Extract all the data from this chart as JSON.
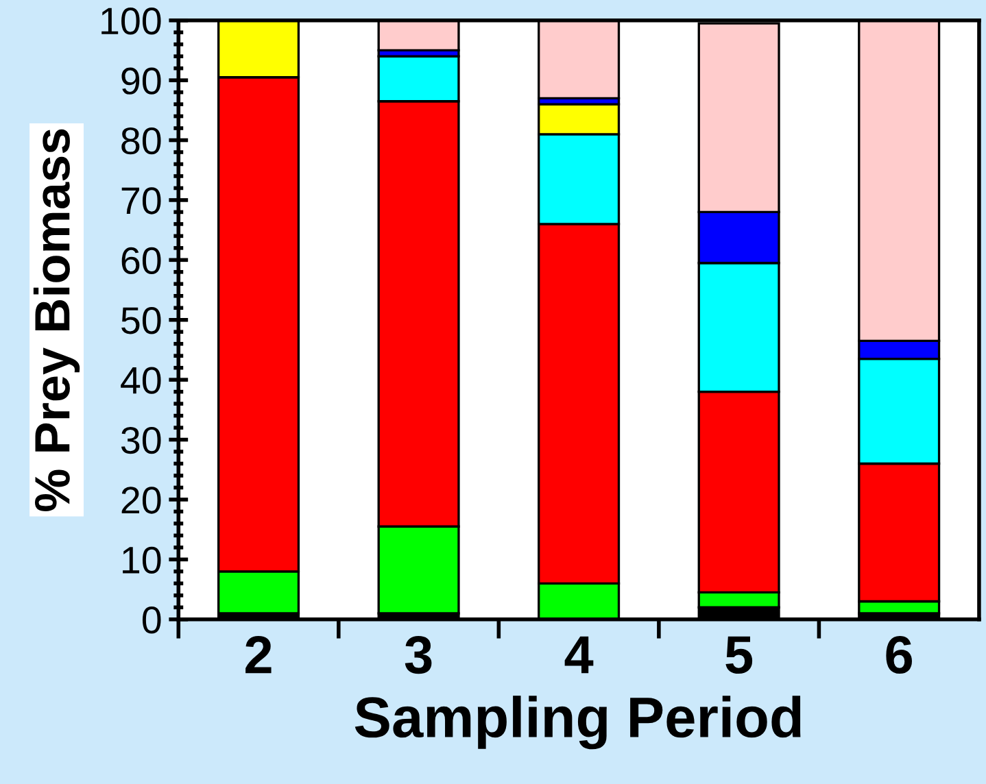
{
  "chart_data": {
    "type": "bar",
    "stacked": true,
    "xlabel": "Sampling Period",
    "ylabel": "% Prey Biomass",
    "categories": [
      "2",
      "3",
      "4",
      "5",
      "6"
    ],
    "series": [
      {
        "color": "#000000",
        "values": [
          1,
          1,
          0,
          2,
          1
        ]
      },
      {
        "color": "#00ff00",
        "values": [
          7,
          14.5,
          6,
          2.5,
          2
        ]
      },
      {
        "color": "#ff0000",
        "values": [
          82.5,
          71,
          60,
          33.5,
          23
        ]
      },
      {
        "color": "#00ffff",
        "values": [
          0,
          7.5,
          15,
          21.5,
          17.5
        ]
      },
      {
        "color": "#ffff00",
        "values": [
          9.5,
          0,
          5,
          0,
          0
        ]
      },
      {
        "color": "#0000ff",
        "values": [
          0,
          1,
          1,
          8.5,
          3
        ]
      },
      {
        "color": "#ffcccc",
        "values": [
          0,
          5,
          13,
          31.5,
          53.5
        ]
      }
    ],
    "ylim": [
      0,
      100
    ],
    "yticks": [
      0,
      10,
      20,
      30,
      40,
      50,
      60,
      70,
      80,
      90,
      100
    ],
    "grid": false,
    "legend": false
  }
}
